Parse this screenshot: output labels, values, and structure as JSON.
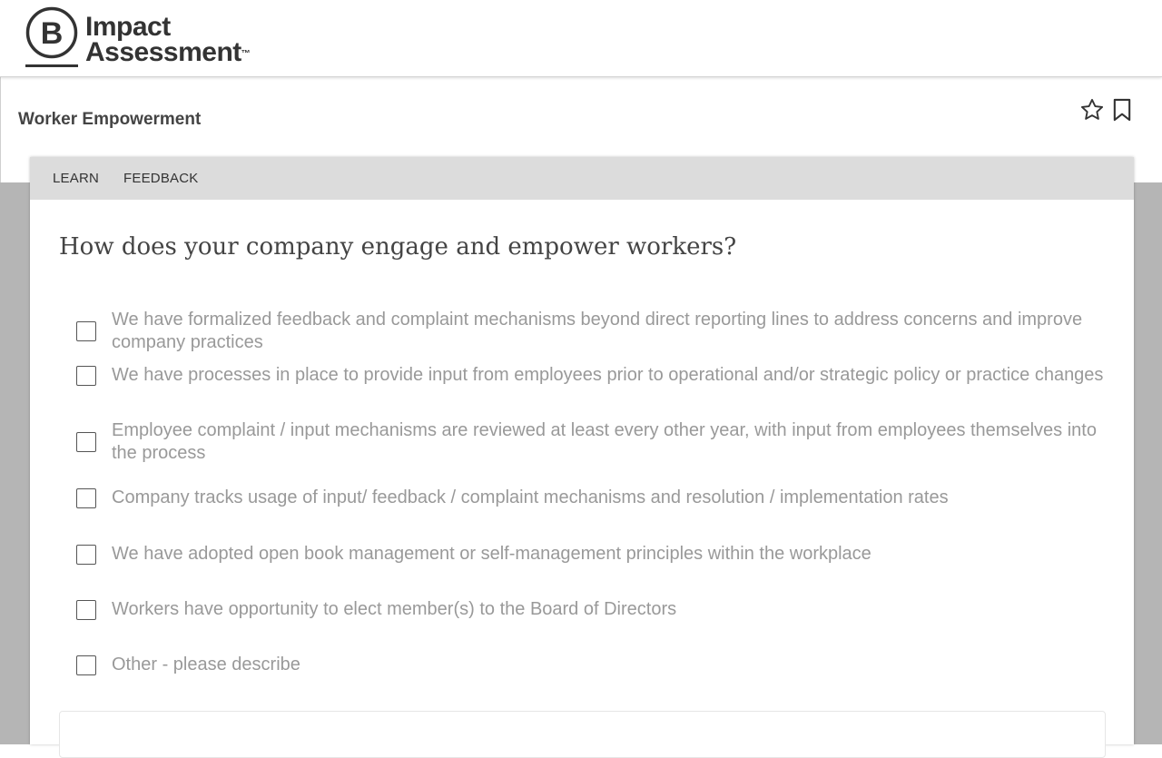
{
  "header": {
    "logo_text_line1": "Impact",
    "logo_text_line2": "Assessment",
    "logo_tm": "™"
  },
  "section": {
    "title": "Worker Empowerment"
  },
  "tabs": [
    {
      "label": "LEARN"
    },
    {
      "label": "FEEDBACK"
    }
  ],
  "question": {
    "text": "How does your company engage and empower workers?",
    "options": [
      {
        "label": "We have formalized feedback and complaint mechanisms beyond direct reporting lines to address concerns and improve company practices",
        "checked": false
      },
      {
        "label": "We have processes in place to provide input from employees prior to operational and/or strategic policy or practice changes",
        "checked": false
      },
      {
        "label": "Employee complaint / input mechanisms are reviewed at least every other year, with input from employees themselves into the process",
        "checked": false
      },
      {
        "label": "Company tracks usage of input/ feedback / complaint mechanisms and resolution / implementation rates",
        "checked": false
      },
      {
        "label": "We have adopted open book management or self-management principles within the workplace",
        "checked": false
      },
      {
        "label": "Workers have opportunity to elect member(s) to the Board of Directors",
        "checked": false
      },
      {
        "label": "Other - please describe",
        "checked": false
      }
    ]
  },
  "icons": {
    "star": "star-icon",
    "bookmark": "bookmark-icon"
  },
  "colors": {
    "header_text": "#333333",
    "option_text": "#999999",
    "tab_bar": "#dcdcdc",
    "page_bg": "#b5b5b5"
  }
}
